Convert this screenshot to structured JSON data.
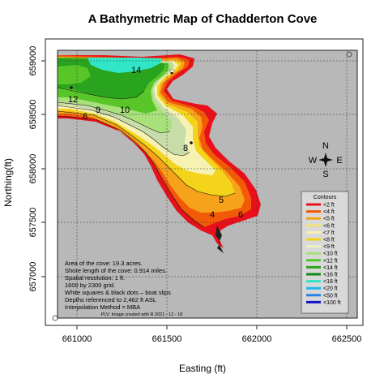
{
  "title": "A Bathymetric Map of  Chadderton Cove",
  "x_axis": {
    "label": "Easting (ft)",
    "ticks": [
      "661000",
      "661500",
      "662000",
      "662500"
    ]
  },
  "y_axis": {
    "label": "Northing(ft)",
    "ticks": [
      "659000",
      "658500",
      "658000",
      "657500",
      "657000"
    ]
  },
  "contour_labels": [
    "14",
    "12",
    "10",
    "9",
    "8",
    "6",
    "5",
    "4",
    "6"
  ],
  "compass": {
    "n": "N",
    "s": "S",
    "e": "E",
    "w": "W"
  },
  "legend": {
    "title": "Contours",
    "entries": [
      {
        "label": "<2 ft",
        "color": "#e8101a"
      },
      {
        "label": "<4 ft",
        "color": "#f25a08"
      },
      {
        "label": "<5 ft",
        "color": "#f6a21a"
      },
      {
        "label": "<6 ft",
        "color": "#f2e27a"
      },
      {
        "label": "<7 ft",
        "color": "#f6f2b4"
      },
      {
        "label": "<8 ft",
        "color": "#f4d41a"
      },
      {
        "label": "<9 ft",
        "color": "#eeeec2"
      },
      {
        "label": "<10 ft",
        "color": "#a8e07a"
      },
      {
        "label": "<12 ft",
        "color": "#58c628"
      },
      {
        "label": "<14 ft",
        "color": "#2aa41e"
      },
      {
        "label": "<16 ft",
        "color": "#0e8a14"
      },
      {
        "label": "<18 ft",
        "color": "#30e6c6"
      },
      {
        "label": "<20 ft",
        "color": "#1ab8ee"
      },
      {
        "label": "<50 ft",
        "color": "#2a84e2"
      },
      {
        "label": "<100 ft",
        "color": "#1414c8"
      }
    ]
  },
  "notes": [
    "Area of the cove: 19.3 acres.",
    "Shore length of the cove: 0.914 miles.",
    "Spatial resolution: 1 ft.",
    "1600 by 2300 grid.",
    "White squares & black dots – boat slips",
    "Depths referenced to 2,462 ft ASL",
    "Interpolation Method =  MBA"
  ],
  "credit": "PLV: Image created with R  2021 - 12 - 18",
  "colors": {
    "plot_background": "#b8b8b8",
    "gridline": "#333333",
    "depth_red": "#e8101a",
    "depth_orange": "#f25a08",
    "depth_amber": "#f6a21a",
    "depth_yellow": "#f4d41a",
    "depth_pale": "#f6f2b4",
    "depth_sage": "#c8dcaa",
    "depth_lightgreen": "#a8e07a",
    "depth_green": "#58c628",
    "depth_darkgreen": "#2aa41e",
    "depth_cyan": "#30e6c6"
  }
}
